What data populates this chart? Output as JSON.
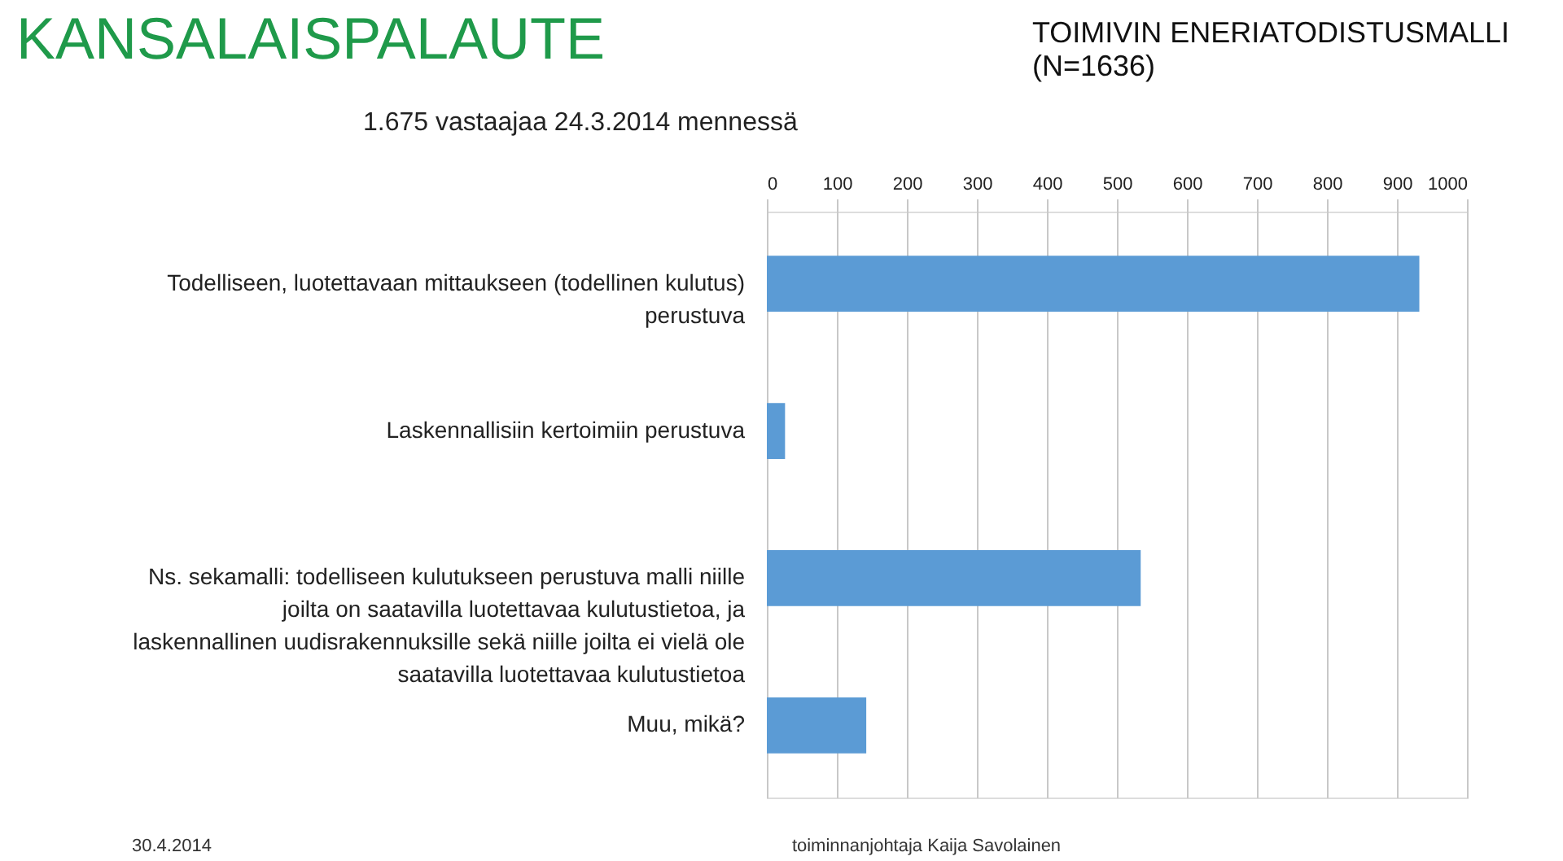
{
  "chart_data": {
    "type": "bar",
    "orientation": "horizontal",
    "title": "KANSALAISPALAUTE",
    "subtitle": "1.675 vastaajaa 24.3.2014 mennessä",
    "annotations": [
      "TOIMIVIN ENERIATODISTUSMALLI\n(N=1636)",
      "30.4.2014",
      "toiminnanjohtaja Kaija Savolainen"
    ],
    "categories": [
      "Todelliseen, luotettavaan mittaukseen (todellinen kulutus)\nperustuva",
      "Laskennallisiin kertoimiin perustuva",
      "Ns. sekamalli: todelliseen kulutukseen perustuva malli niille\njoilta on saatavilla luotettavaa kulutustietoa, ja\nlaskennallinen uudisrakennuksille sekä niille joilta ei vielä ole\nsaatavilla luotettavaa kulutustietoa",
      "Muu, mikä?"
    ],
    "values": [
      932,
      26,
      534,
      142
    ],
    "color": "#5b9bd5",
    "xlim": [
      0,
      1000
    ],
    "xticks": [
      0,
      100,
      200,
      300,
      400,
      500,
      600,
      700,
      800,
      900,
      1000
    ],
    "grid": "x"
  }
}
